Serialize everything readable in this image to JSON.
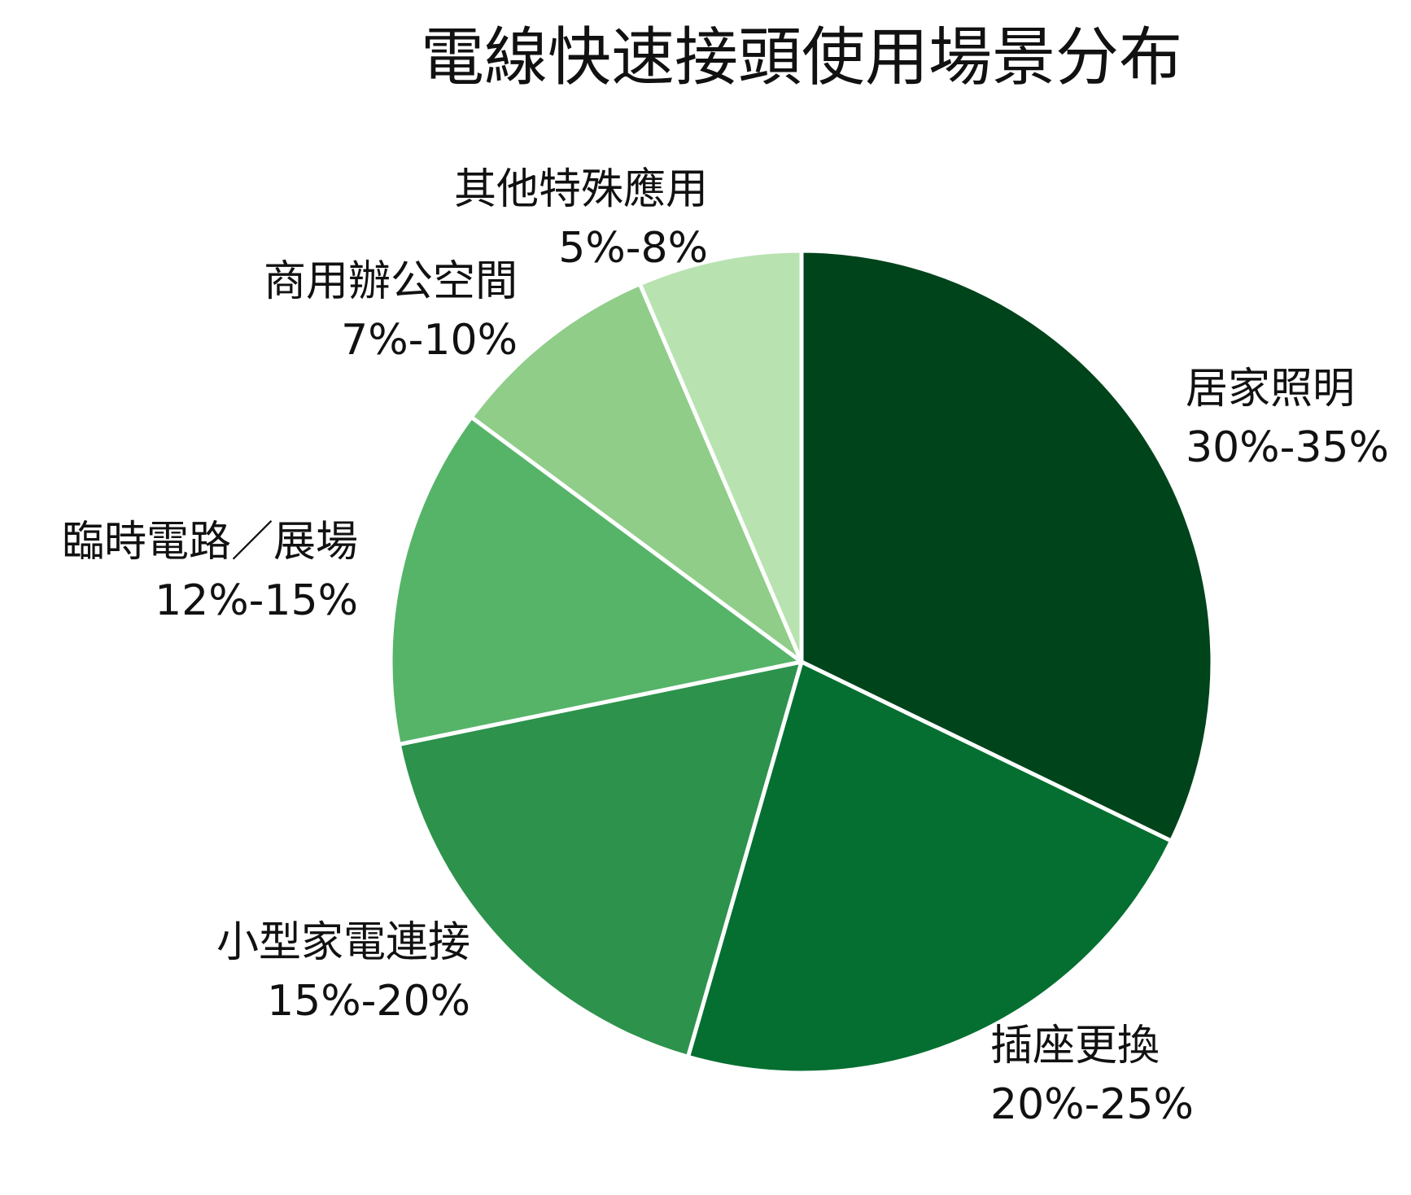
{
  "chart_data": {
    "type": "pie",
    "title": "電線快速接頭使用場景分布",
    "start_angle_deg": 0,
    "direction": "clockwise",
    "slices": [
      {
        "name": "居家照明",
        "range_label": "30%-35%",
        "value": 32.5,
        "color": "#00441b"
      },
      {
        "name": "插座更換",
        "range_label": "20%-25%",
        "value": 22.5,
        "color": "#046f30"
      },
      {
        "name": "小型家電連接",
        "range_label": "15%-20%",
        "value": 17.5,
        "color": "#2d924c"
      },
      {
        "name": "臨時電路／展場",
        "range_label": "12%-15%",
        "value": 13.5,
        "color": "#56b469"
      },
      {
        "name": "商用辦公空間",
        "range_label": "7%-10%",
        "value": 8.5,
        "color": "#8fcd89"
      },
      {
        "name": "其他特殊應用",
        "range_label": "5%-8%",
        "value": 6.5,
        "color": "#b8e3b1"
      }
    ]
  }
}
